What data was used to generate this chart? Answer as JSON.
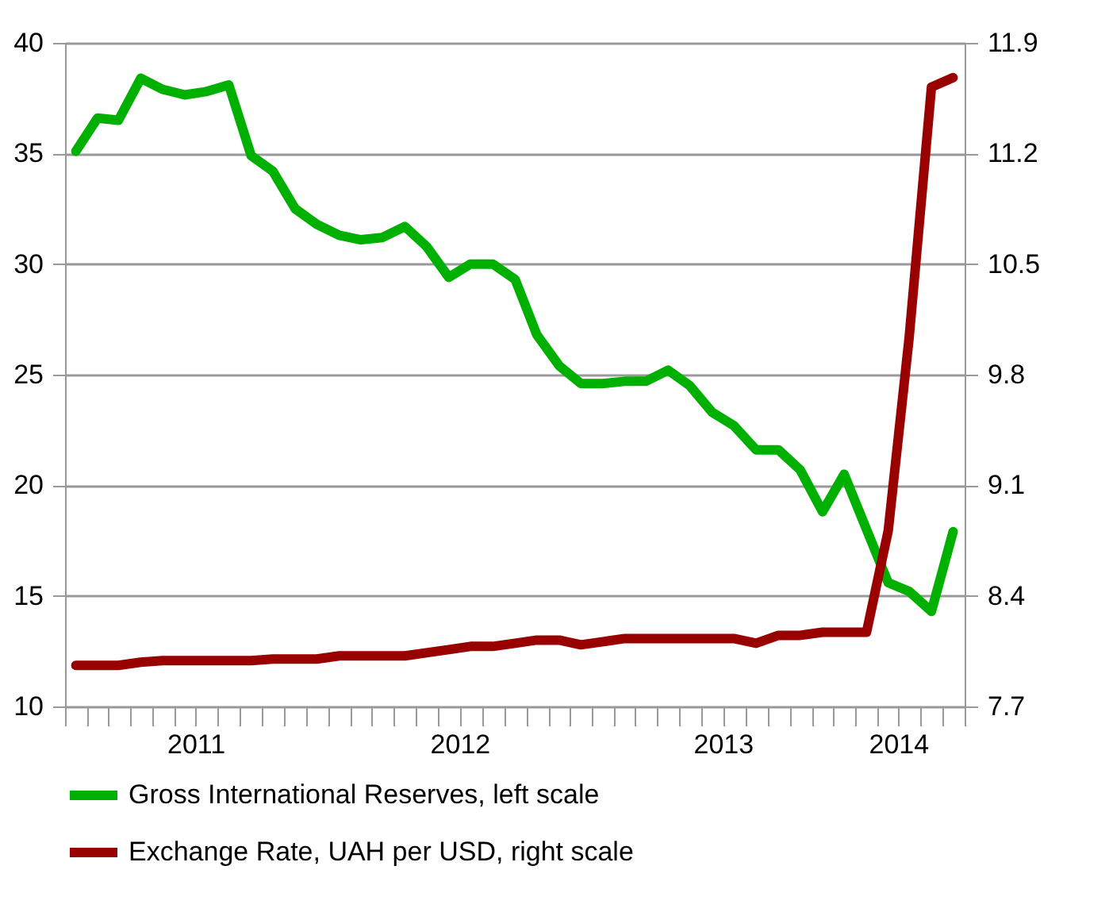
{
  "chart_data": {
    "type": "line",
    "x": [
      "2011-01-16",
      "2011-02-15",
      "2011-03-16",
      "2011-04-16",
      "2011-05-16",
      "2011-06-16",
      "2011-07-16",
      "2011-08-16",
      "2011-09-16",
      "2011-10-16",
      "2011-11-16",
      "2011-12-16",
      "2012-01-16",
      "2012-02-15",
      "2012-03-16",
      "2012-04-16",
      "2012-05-16",
      "2012-06-16",
      "2012-07-16",
      "2012-08-16",
      "2012-09-16",
      "2012-10-16",
      "2012-11-16",
      "2012-12-16",
      "2013-01-16",
      "2013-02-15",
      "2013-03-16",
      "2013-04-16",
      "2013-05-16",
      "2013-06-16",
      "2013-07-16",
      "2013-08-16",
      "2013-09-16",
      "2013-10-16",
      "2013-11-16",
      "2013-12-16",
      "2014-01-16",
      "2014-02-15",
      "2014-03-16",
      "2014-04-16",
      "2014-05-16"
    ],
    "series": [
      {
        "name": "Gross International Reserves, left scale",
        "color": "#00b000",
        "values": [
          35.1,
          36.6,
          36.5,
          38.4,
          37.9,
          37.65,
          37.8,
          38.1,
          34.9,
          34.2,
          32.5,
          31.8,
          31.3,
          31.1,
          31.2,
          31.7,
          30.8,
          29.4,
          30.0,
          30.0,
          29.3,
          26.8,
          25.4,
          24.6,
          24.6,
          24.7,
          24.7,
          25.2,
          24.5,
          23.3,
          22.7,
          21.6,
          21.6,
          20.7,
          18.8,
          20.5,
          18.0,
          15.6,
          15.2,
          14.3,
          17.9
        ]
      },
      {
        "name": "Exchange Rate, UAH per USD, right scale",
        "color": "#990000",
        "axis": "y2",
        "values": [
          7.96,
          7.96,
          7.96,
          7.98,
          7.99,
          7.99,
          7.99,
          7.99,
          7.99,
          8.0,
          8.0,
          8.0,
          8.02,
          8.02,
          8.02,
          8.02,
          8.04,
          8.06,
          8.08,
          8.08,
          8.1,
          8.12,
          8.12,
          8.09,
          8.11,
          8.13,
          8.13,
          8.13,
          8.13,
          8.13,
          8.13,
          8.1,
          8.15,
          8.15,
          8.17,
          8.17,
          8.17,
          8.81,
          10.03,
          11.62,
          11.68
        ]
      }
    ],
    "xlim": [
      "2011-01-01",
      "2014-06-01"
    ],
    "xticks": [
      {
        "value": "2011-01-01",
        "label": null
      },
      {
        "value": "2011-02-01",
        "label": null
      },
      {
        "value": "2011-03-01",
        "label": null
      },
      {
        "value": "2011-04-01",
        "label": null
      },
      {
        "value": "2011-05-01",
        "label": null
      },
      {
        "value": "2011-06-01",
        "label": null
      },
      {
        "value": "2011-07-01",
        "label": "2011"
      },
      {
        "value": "2011-08-01",
        "label": null
      },
      {
        "value": "2011-09-01",
        "label": null
      },
      {
        "value": "2011-10-01",
        "label": null
      },
      {
        "value": "2011-11-01",
        "label": null
      },
      {
        "value": "2011-12-01",
        "label": null
      },
      {
        "value": "2012-01-01",
        "label": null
      },
      {
        "value": "2012-02-01",
        "label": null
      },
      {
        "value": "2012-03-01",
        "label": null
      },
      {
        "value": "2012-04-01",
        "label": null
      },
      {
        "value": "2012-05-01",
        "label": null
      },
      {
        "value": "2012-06-01",
        "label": null
      },
      {
        "value": "2012-07-01",
        "label": "2012"
      },
      {
        "value": "2012-08-01",
        "label": null
      },
      {
        "value": "2012-09-01",
        "label": null
      },
      {
        "value": "2012-10-01",
        "label": null
      },
      {
        "value": "2012-11-01",
        "label": null
      },
      {
        "value": "2012-12-01",
        "label": null
      },
      {
        "value": "2013-01-01",
        "label": null
      },
      {
        "value": "2013-02-01",
        "label": null
      },
      {
        "value": "2013-03-01",
        "label": null
      },
      {
        "value": "2013-04-01",
        "label": null
      },
      {
        "value": "2013-05-01",
        "label": null
      },
      {
        "value": "2013-06-01",
        "label": null
      },
      {
        "value": "2013-07-01",
        "label": "2013"
      },
      {
        "value": "2013-08-01",
        "label": null
      },
      {
        "value": "2013-09-01",
        "label": null
      },
      {
        "value": "2013-10-01",
        "label": null
      },
      {
        "value": "2013-11-01",
        "label": null
      },
      {
        "value": "2013-12-01",
        "label": null
      },
      {
        "value": "2014-01-01",
        "label": null
      },
      {
        "value": "2014-02-01",
        "label": null
      },
      {
        "value": "2014-03-01",
        "label": "2014"
      },
      {
        "value": "2014-04-01",
        "label": null
      },
      {
        "value": "2014-05-01",
        "label": null
      },
      {
        "value": "2014-06-01",
        "label": null
      }
    ],
    "ylim": [
      10,
      40
    ],
    "yticks": [
      10,
      15,
      20,
      25,
      30,
      35,
      40
    ],
    "y2lim": [
      7.7,
      11.9
    ],
    "y2ticks": [
      7.7,
      8.4,
      9.1,
      9.8,
      10.5,
      11.2,
      11.9
    ],
    "grid": "y",
    "legend": "bottom",
    "line_style": "solid"
  }
}
